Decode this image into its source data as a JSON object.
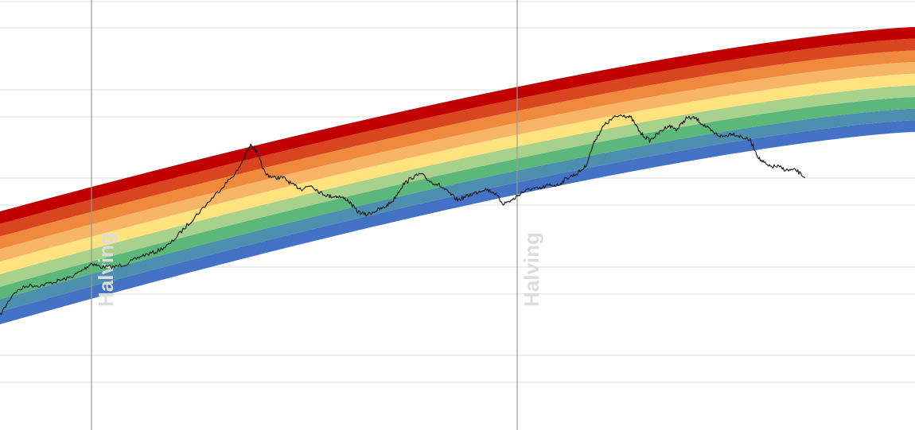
{
  "chart_data": {
    "type": "area",
    "title": "",
    "xlabel": "",
    "ylabel": "",
    "yscale": "log",
    "grid": true,
    "legend": "none",
    "band_colors": [
      "#4472c4",
      "#4e8fb0",
      "#5cb87a",
      "#a9d18e",
      "#ffe37f",
      "#f6b567",
      "#ef8a3c",
      "#d9451f",
      "#c00000"
    ],
    "price_color": "#222222",
    "halving_color": "#999999",
    "halving_label_color": "#dcdcdc",
    "halvings": [
      {
        "x": 0.1,
        "label": "Halving"
      },
      {
        "x": 0.565,
        "label": "Halving"
      }
    ],
    "series": [
      {
        "x": [
          0.0,
          0.015,
          0.03,
          0.045,
          0.06,
          0.075,
          0.09,
          0.1,
          0.11,
          0.125,
          0.14,
          0.155,
          0.17,
          0.185,
          0.2,
          0.215,
          0.23,
          0.245,
          0.26,
          0.27,
          0.275,
          0.28,
          0.29,
          0.3,
          0.31,
          0.32,
          0.33,
          0.34,
          0.35,
          0.36,
          0.37,
          0.38,
          0.39,
          0.4,
          0.41,
          0.42,
          0.43,
          0.44,
          0.45,
          0.46,
          0.47,
          0.48,
          0.49,
          0.5,
          0.51,
          0.52,
          0.53,
          0.54,
          0.55,
          0.56,
          0.57,
          0.58,
          0.59,
          0.6,
          0.61,
          0.62,
          0.63,
          0.64,
          0.65,
          0.66,
          0.67,
          0.68,
          0.69,
          0.7,
          0.71,
          0.72,
          0.73,
          0.74,
          0.75,
          0.76,
          0.77,
          0.78,
          0.79,
          0.8,
          0.81,
          0.82,
          0.83,
          0.84,
          0.85,
          0.86,
          0.87,
          0.88
        ],
        "y": [
          0.25,
          0.31,
          0.33,
          0.33,
          0.34,
          0.35,
          0.37,
          0.39,
          0.38,
          0.38,
          0.39,
          0.41,
          0.42,
          0.44,
          0.48,
          0.52,
          0.56,
          0.6,
          0.64,
          0.69,
          0.71,
          0.69,
          0.63,
          0.62,
          0.62,
          0.6,
          0.59,
          0.6,
          0.58,
          0.57,
          0.57,
          0.56,
          0.53,
          0.52,
          0.53,
          0.54,
          0.56,
          0.6,
          0.62,
          0.63,
          0.61,
          0.6,
          0.58,
          0.56,
          0.57,
          0.58,
          0.59,
          0.58,
          0.55,
          0.56,
          0.58,
          0.59,
          0.59,
          0.6,
          0.6,
          0.62,
          0.63,
          0.65,
          0.72,
          0.76,
          0.78,
          0.79,
          0.78,
          0.74,
          0.72,
          0.74,
          0.76,
          0.75,
          0.78,
          0.78,
          0.76,
          0.74,
          0.73,
          0.74,
          0.73,
          0.72,
          0.67,
          0.65,
          0.65,
          0.64,
          0.64,
          0.62
        ]
      }
    ]
  }
}
